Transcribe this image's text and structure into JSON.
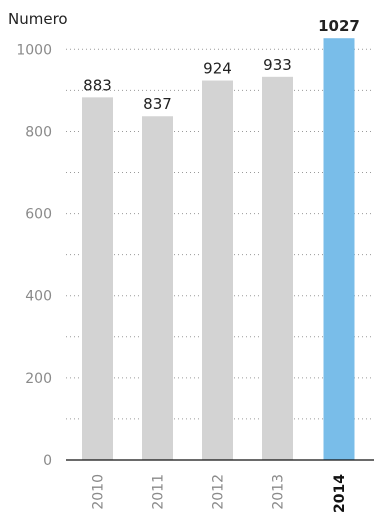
{
  "chart_data": {
    "type": "bar",
    "ylabel": "Numero",
    "categories": [
      "2010",
      "2011",
      "2012",
      "2013",
      "2014"
    ],
    "values": [
      883,
      837,
      924,
      933,
      1027
    ],
    "data_labels": [
      "883",
      "837",
      "924",
      "933",
      "1027"
    ],
    "highlight_index": 4,
    "ylim": [
      0,
      1000
    ],
    "yticks": [
      0,
      200,
      400,
      600,
      800,
      1000
    ],
    "ytick_labels": [
      "0",
      "200",
      "400",
      "600",
      "800",
      "1000"
    ],
    "minor_grid_step": 100,
    "grid": true,
    "colors": {
      "bar": "#d3d3d3",
      "highlight": "#79bde9"
    }
  }
}
